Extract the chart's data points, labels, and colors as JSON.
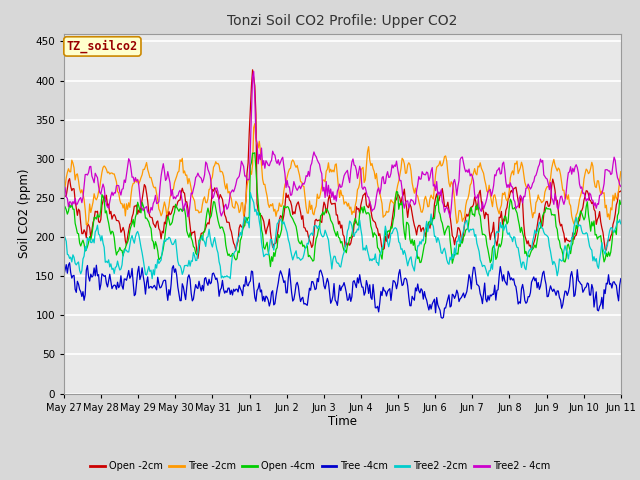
{
  "title": "Tonzi Soil CO2 Profile: Upper CO2",
  "xlabel": "Time",
  "ylabel": "Soil CO2 (ppm)",
  "ylim": [
    0,
    460
  ],
  "yticks": [
    0,
    50,
    100,
    150,
    200,
    250,
    300,
    350,
    400,
    450
  ],
  "bg_color": "#d8d8d8",
  "plot_bg_color": "#e8e8e8",
  "legend_label": "TZ_soilco2",
  "series": [
    {
      "label": "Open -2cm",
      "color": "#cc0000"
    },
    {
      "label": "Tree -2cm",
      "color": "#ff9900"
    },
    {
      "label": "Open -4cm",
      "color": "#00cc00"
    },
    {
      "label": "Tree -4cm",
      "color": "#0000cc"
    },
    {
      "label": "Tree2 -2cm",
      "color": "#00cccc"
    },
    {
      "label": "Tree2 - 4cm",
      "color": "#cc00cc"
    }
  ],
  "x_tick_labels": [
    "May 27",
    "May 28",
    "May 29",
    "May 30",
    "May 31",
    "Jun 1",
    "Jun 2",
    "Jun 3",
    "Jun 4",
    "Jun 5",
    "Jun 6",
    "Jun 7",
    "Jun 8",
    "Jun 9",
    "Jun 10",
    "Jun 11"
  ],
  "n_points": 500
}
